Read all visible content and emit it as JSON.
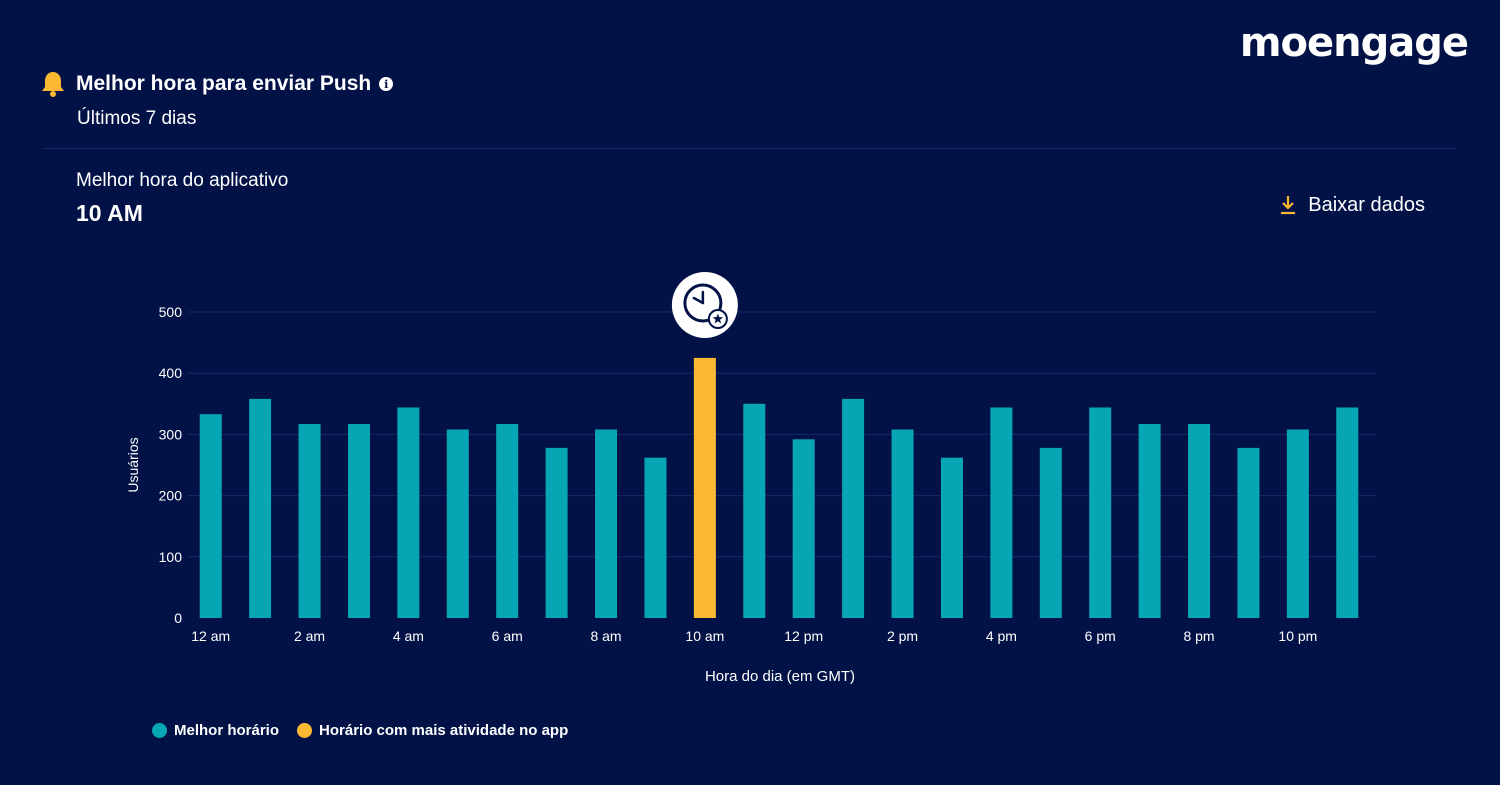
{
  "brand": {
    "logo_text": "moengage"
  },
  "header": {
    "title": "Melhor hora para enviar Push",
    "info_icon": "info-icon",
    "bell_icon": "bell-icon",
    "subtitle": "Últimos 7 dias"
  },
  "best_time": {
    "label": "Melhor hora do aplicativo",
    "value": "10 AM"
  },
  "download": {
    "label": "Baixar dados",
    "icon": "download-icon"
  },
  "colors": {
    "background": "#021246",
    "bar": "#07a6b4",
    "highlight": "#fbb833",
    "grid": "#15286a"
  },
  "legend": {
    "items": [
      {
        "label": "Melhor horário",
        "color": "#07a6b4"
      },
      {
        "label": "Horário com mais atividade no app",
        "color": "#fbb833"
      }
    ]
  },
  "chart_data": {
    "type": "bar",
    "title": "",
    "xlabel": "Hora do dia (em GMT)",
    "ylabel": "Usuários",
    "ylim": [
      0,
      500
    ],
    "yticks": [
      0,
      100,
      200,
      300,
      400,
      500
    ],
    "grid": true,
    "categories": [
      "12 am",
      "1 am",
      "2 am",
      "3 am",
      "4 am",
      "5 am",
      "6 am",
      "7 am",
      "8 am",
      "9 am",
      "10 am",
      "11 am",
      "12 pm",
      "1 pm",
      "2 pm",
      "3 pm",
      "4 pm",
      "5 pm",
      "6 pm",
      "7 pm",
      "8 pm",
      "9 pm",
      "10 pm",
      "11 pm"
    ],
    "tick_labels": [
      "12 am",
      "2 am",
      "4 am",
      "6 am",
      "8 am",
      "10 am",
      "12 pm",
      "2 pm",
      "4 pm",
      "6 pm",
      "8 pm",
      "10 pm"
    ],
    "values": [
      333,
      358,
      317,
      317,
      344,
      308,
      317,
      278,
      308,
      262,
      425,
      350,
      292,
      358,
      308,
      262,
      344,
      278,
      344,
      317,
      317,
      278,
      308,
      344
    ],
    "highlight_index": 10,
    "highlight_marker_icon": "clock-star-icon",
    "legend_position": "bottom-left"
  }
}
